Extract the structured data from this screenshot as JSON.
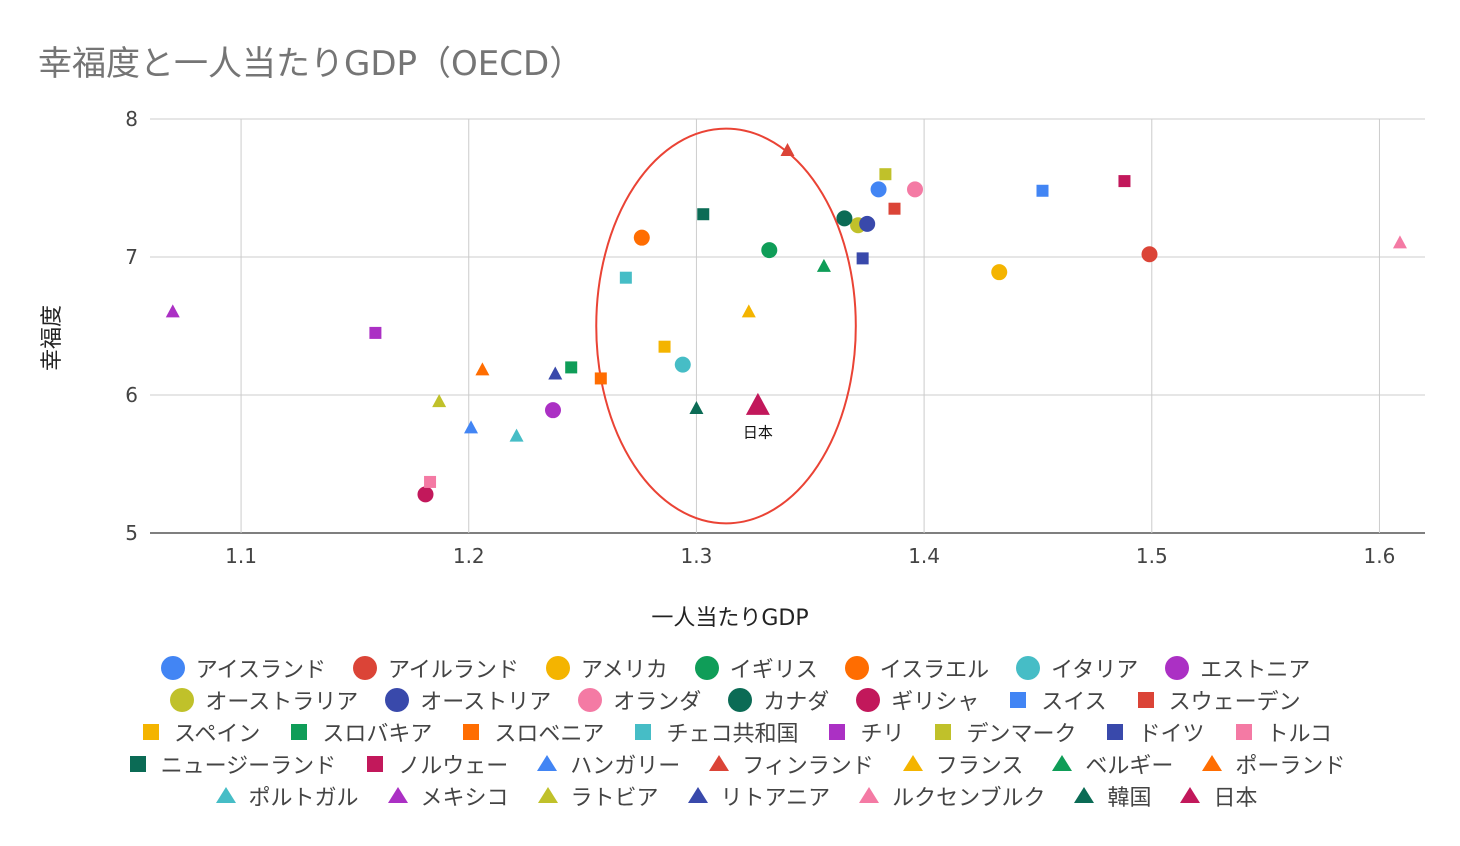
{
  "title": "幸福度と一人当たりGDP（OECD）",
  "chart_data": {
    "type": "scatter",
    "title": "幸福度と一人当たりGDP（OECD）",
    "xlabel": "一人当たりGDP",
    "ylabel": "幸福度",
    "xlim": [
      1.06,
      1.62
    ],
    "ylim": [
      5,
      8
    ],
    "xticks": [
      "1.1",
      "1.2",
      "1.3",
      "1.4",
      "1.5",
      "1.6"
    ],
    "yticks": [
      "5",
      "6",
      "7",
      "8"
    ],
    "grid": true,
    "legend_position": "bottom",
    "annotations": [
      {
        "text": "日本",
        "x": 1.327,
        "y": 5.88
      },
      {
        "shape": "ellipse",
        "color": "#ea4335",
        "cx": 1.313,
        "cy": 6.5,
        "rx": 0.057,
        "ry": 1.43
      }
    ],
    "series": [
      {
        "name": "アイスランド",
        "shape": "circle",
        "color": "#4285f4",
        "x": 1.38,
        "y": 7.49
      },
      {
        "name": "アイルランド",
        "shape": "circle",
        "color": "#db4437",
        "x": 1.499,
        "y": 7.02
      },
      {
        "name": "アメリカ",
        "shape": "circle",
        "color": "#f4b400",
        "x": 1.433,
        "y": 6.89
      },
      {
        "name": "イギリス",
        "shape": "circle",
        "color": "#0f9d58",
        "x": 1.332,
        "y": 7.05
      },
      {
        "name": "イスラエル",
        "shape": "circle",
        "color": "#ff6d01",
        "x": 1.276,
        "y": 7.14
      },
      {
        "name": "イタリア",
        "shape": "circle",
        "color": "#46bdc6",
        "x": 1.294,
        "y": 6.22
      },
      {
        "name": "エストニア",
        "shape": "circle",
        "color": "#ab30c4",
        "x": 1.237,
        "y": 5.89
      },
      {
        "name": "オーストラリア",
        "shape": "circle",
        "color": "#c0c12a",
        "x": 1.371,
        "y": 7.23
      },
      {
        "name": "オーストリア",
        "shape": "circle",
        "color": "#3949ab",
        "x": 1.375,
        "y": 7.24
      },
      {
        "name": "オランダ",
        "shape": "circle",
        "color": "#f47aa4",
        "x": 1.396,
        "y": 7.49
      },
      {
        "name": "カナダ",
        "shape": "circle",
        "color": "#0b6b55",
        "x": 1.365,
        "y": 7.28
      },
      {
        "name": "ギリシャ",
        "shape": "circle",
        "color": "#c2185b",
        "x": 1.181,
        "y": 5.28
      },
      {
        "name": "スイス",
        "shape": "square",
        "color": "#4285f4",
        "x": 1.452,
        "y": 7.48
      },
      {
        "name": "スウェーデン",
        "shape": "square",
        "color": "#db4437",
        "x": 1.387,
        "y": 7.35
      },
      {
        "name": "スペイン",
        "shape": "square",
        "color": "#f4b400",
        "x": 1.286,
        "y": 6.35
      },
      {
        "name": "スロバキア",
        "shape": "square",
        "color": "#0f9d58",
        "x": 1.245,
        "y": 6.2
      },
      {
        "name": "スロベニア",
        "shape": "square",
        "color": "#ff6d01",
        "x": 1.258,
        "y": 6.12
      },
      {
        "name": "チェコ共和国",
        "shape": "square",
        "color": "#46bdc6",
        "x": 1.269,
        "y": 6.85
      },
      {
        "name": "チリ",
        "shape": "square",
        "color": "#ab30c4",
        "x": 1.159,
        "y": 6.45
      },
      {
        "name": "デンマーク",
        "shape": "square",
        "color": "#c0c12a",
        "x": 1.383,
        "y": 7.6
      },
      {
        "name": "ドイツ",
        "shape": "square",
        "color": "#3949ab",
        "x": 1.373,
        "y": 6.99
      },
      {
        "name": "トルコ",
        "shape": "square",
        "color": "#f47aa4",
        "x": 1.183,
        "y": 5.37
      },
      {
        "name": "ニュージーランド",
        "shape": "square",
        "color": "#0b6b55",
        "x": 1.303,
        "y": 7.31
      },
      {
        "name": "ノルウェー",
        "shape": "square",
        "color": "#c2185b",
        "x": 1.488,
        "y": 7.55
      },
      {
        "name": "ハンガリー",
        "shape": "triangle",
        "color": "#4285f4",
        "x": 1.201,
        "y": 5.76
      },
      {
        "name": "フィンランド",
        "shape": "triangle",
        "color": "#db4437",
        "x": 1.34,
        "y": 7.77
      },
      {
        "name": "フランス",
        "shape": "triangle",
        "color": "#f4b400",
        "x": 1.323,
        "y": 6.6
      },
      {
        "name": "ベルギー",
        "shape": "triangle",
        "color": "#0f9d58",
        "x": 1.356,
        "y": 6.93
      },
      {
        "name": "ポーランド",
        "shape": "triangle",
        "color": "#ff6d01",
        "x": 1.206,
        "y": 6.18
      },
      {
        "name": "ポルトガル",
        "shape": "triangle",
        "color": "#46bdc6",
        "x": 1.221,
        "y": 5.7
      },
      {
        "name": "メキシコ",
        "shape": "triangle",
        "color": "#ab30c4",
        "x": 1.07,
        "y": 6.6
      },
      {
        "name": "ラトビア",
        "shape": "triangle",
        "color": "#c0c12a",
        "x": 1.187,
        "y": 5.95
      },
      {
        "name": "リトアニア",
        "shape": "triangle",
        "color": "#3949ab",
        "x": 1.238,
        "y": 6.15
      },
      {
        "name": "ルクセンブルク",
        "shape": "triangle",
        "color": "#f47aa4",
        "x": 1.609,
        "y": 7.1
      },
      {
        "name": "韓国",
        "shape": "triangle",
        "color": "#0b6b55",
        "x": 1.3,
        "y": 5.9
      },
      {
        "name": "日本",
        "shape": "triangle",
        "color": "#c2185b",
        "x": 1.327,
        "y": 5.92,
        "highlight": true
      }
    ]
  }
}
